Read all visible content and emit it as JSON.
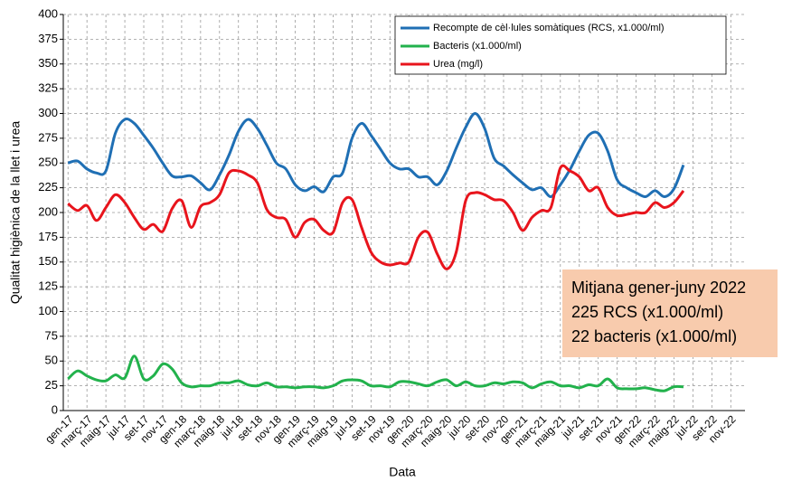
{
  "chart_data": {
    "type": "line",
    "xlabel": "Data",
    "ylabel": "Qualitat higiènica de la llet i urea",
    "categories": [
      "gen-17",
      null,
      "març-17",
      null,
      "maig-17",
      null,
      "jul-17",
      null,
      "set-17",
      null,
      "nov-17",
      null,
      "gen-18",
      null,
      "març-18",
      null,
      "maig-18",
      null,
      "jul-18",
      null,
      "set-18",
      null,
      "nov-18",
      null,
      "gen-19",
      null,
      "març-19",
      null,
      "maig-19",
      null,
      "jul-19",
      null,
      "set-19",
      null,
      "nov-19",
      null,
      "gen-20",
      null,
      "març-20",
      null,
      "maig-20",
      null,
      "jul-20",
      null,
      "set-20",
      null,
      "nov-20",
      null,
      "gen-21",
      null,
      "març-21",
      null,
      "maig-21",
      null,
      "jul-21",
      null,
      "set-21",
      null,
      "nov-21",
      null,
      "gen-22",
      null,
      "març-22",
      null,
      "maig-22",
      null,
      "jul-22",
      null,
      "set-22",
      null,
      "nov-22",
      null
    ],
    "series": [
      {
        "name": "Recompte de cèl·lules somàtiques (RCS, x1.000/ml)",
        "color": "#1f6fb4",
        "values": [
          250,
          252,
          244,
          240,
          242,
          280,
          294,
          290,
          278,
          265,
          250,
          237,
          236,
          237,
          230,
          223,
          238,
          258,
          282,
          294,
          285,
          268,
          250,
          244,
          228,
          222,
          226,
          221,
          236,
          240,
          275,
          290,
          278,
          264,
          250,
          244,
          244,
          236,
          236,
          228,
          242,
          265,
          286,
          300,
          285,
          255,
          247,
          238,
          230,
          223,
          225,
          216,
          228,
          243,
          262,
          278,
          280,
          262,
          233,
          225,
          220,
          216,
          222,
          216,
          224,
          248,
          null,
          null,
          null,
          null,
          null,
          null
        ]
      },
      {
        "name": "Bacteris (x1.000/ml)",
        "color": "#22b24c",
        "values": [
          32,
          40,
          35,
          31,
          30,
          36,
          33,
          55,
          32,
          35,
          47,
          42,
          28,
          24,
          25,
          25,
          28,
          28,
          30,
          26,
          25,
          28,
          24,
          24,
          23,
          24,
          24,
          23,
          25,
          30,
          31,
          30,
          25,
          25,
          24,
          29,
          29,
          27,
          25,
          29,
          31,
          25,
          29,
          25,
          25,
          28,
          27,
          29,
          28,
          23,
          27,
          29,
          25,
          25,
          23,
          26,
          25,
          32,
          23,
          22,
          22,
          23,
          21,
          20,
          24,
          24,
          null,
          null,
          null,
          null,
          null,
          null
        ]
      },
      {
        "name": "Urea (mg/l)",
        "color": "#e8141c",
        "values": [
          209,
          202,
          207,
          192,
          205,
          218,
          210,
          195,
          183,
          188,
          181,
          204,
          212,
          185,
          206,
          210,
          218,
          240,
          242,
          238,
          230,
          203,
          195,
          193,
          175,
          190,
          193,
          182,
          180,
          210,
          213,
          185,
          160,
          150,
          147,
          149,
          150,
          175,
          180,
          158,
          143,
          160,
          212,
          220,
          218,
          213,
          212,
          200,
          182,
          195,
          202,
          205,
          245,
          242,
          236,
          222,
          225,
          205,
          197,
          198,
          200,
          200,
          210,
          205,
          210,
          222,
          null,
          null,
          null,
          null,
          null,
          null
        ]
      }
    ],
    "ylim": [
      0,
      400
    ],
    "yticks": [
      0,
      25,
      50,
      75,
      100,
      125,
      150,
      175,
      200,
      225,
      250,
      275,
      300,
      325,
      350,
      375,
      400
    ],
    "grid": true,
    "legend": "upper right",
    "annotation": [
      "Mitjana gener-juny 2022",
      "225 RCS (x1.000/ml)",
      "22 bacteris (x1.000/ml)"
    ],
    "annotation_color": "#f8cbad"
  }
}
